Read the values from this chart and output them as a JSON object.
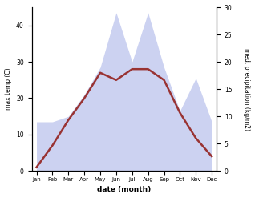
{
  "months": [
    "Jan",
    "Feb",
    "Mar",
    "Apr",
    "May",
    "Jun",
    "Jul",
    "Aug",
    "Sep",
    "Oct",
    "Nov",
    "Dec"
  ],
  "temperature": [
    1,
    7,
    14,
    20,
    27,
    25,
    28,
    28,
    25,
    16,
    9,
    4
  ],
  "precipitation": [
    9,
    9,
    10,
    14,
    19,
    29,
    20,
    29,
    19,
    11,
    17,
    9
  ],
  "temp_color": "#993333",
  "precip_color_fill": "#aab4e8",
  "left_ylabel": "max temp (C)",
  "right_ylabel": "med. precipitation (kg/m2)",
  "xlabel": "date (month)",
  "ylim_left": [
    0,
    45
  ],
  "ylim_right": [
    0,
    30
  ],
  "yticks_left": [
    0,
    10,
    20,
    30,
    40
  ],
  "yticks_right": [
    0,
    5,
    10,
    15,
    20,
    25,
    30
  ],
  "bg_color": "#ffffff",
  "fig_bg": "#ffffff"
}
